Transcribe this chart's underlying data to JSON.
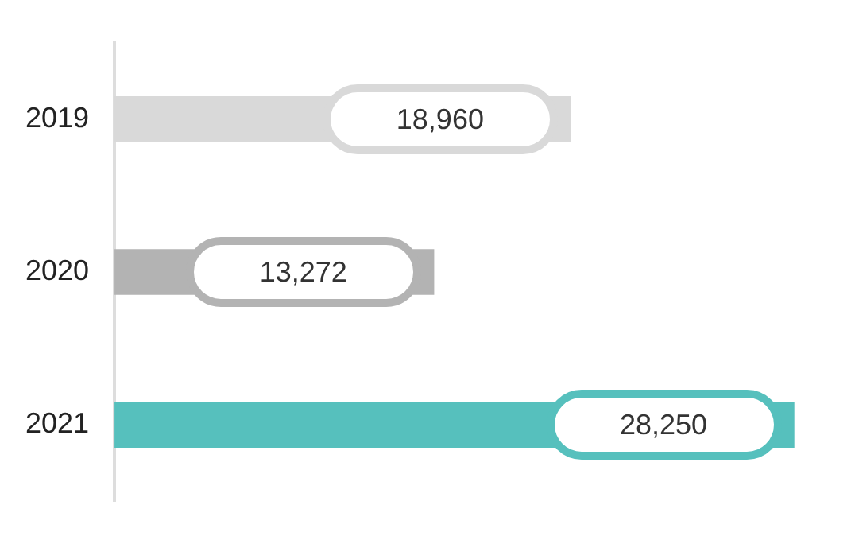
{
  "chart_data": {
    "type": "bar",
    "orientation": "horizontal",
    "categories": [
      "2019",
      "2020",
      "2021"
    ],
    "values": [
      18960,
      13272,
      28250
    ],
    "colors": [
      "#d9d9d9",
      "#b3b3b3",
      "#56c0bd"
    ],
    "value_labels": [
      "18,960",
      "13,272",
      "28,250"
    ],
    "grid": false,
    "legend": false
  }
}
